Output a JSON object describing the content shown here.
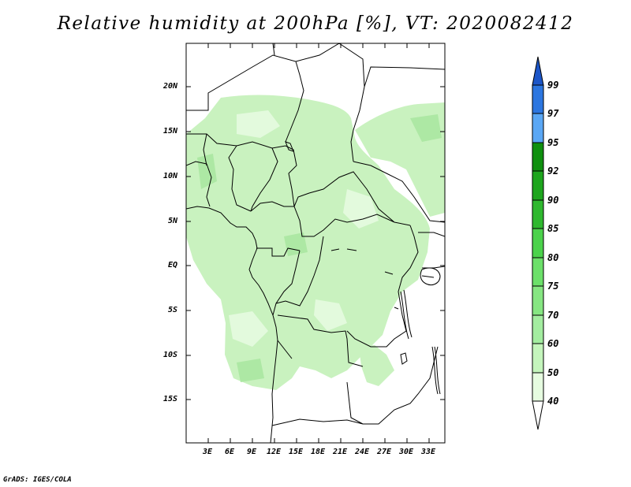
{
  "title": "Relative humidity at 200hPa [%], VT: 2020082412",
  "credit": "GrADS: IGES/COLA",
  "map": {
    "lat_labels": [
      "20N",
      "15N",
      "10N",
      "5N",
      "EQ",
      "5S",
      "10S",
      "15S"
    ],
    "lon_labels": [
      "3E",
      "6E",
      "9E",
      "12E",
      "15E",
      "18E",
      "21E",
      "24E",
      "27E",
      "30E",
      "33E"
    ]
  },
  "legend": {
    "levels": [
      "40",
      "50",
      "60",
      "70",
      "75",
      "80",
      "85",
      "90",
      "92",
      "95",
      "97",
      "99"
    ],
    "colors": [
      "#ffffff",
      "#e6fce0",
      "#c4f5bc",
      "#a3eda0",
      "#86e682",
      "#6ce06a",
      "#4bd24b",
      "#2fb82f",
      "#1da51d",
      "#0f900f",
      "#5aa7f5",
      "#2c76e0",
      "#1c56c8"
    ]
  }
}
